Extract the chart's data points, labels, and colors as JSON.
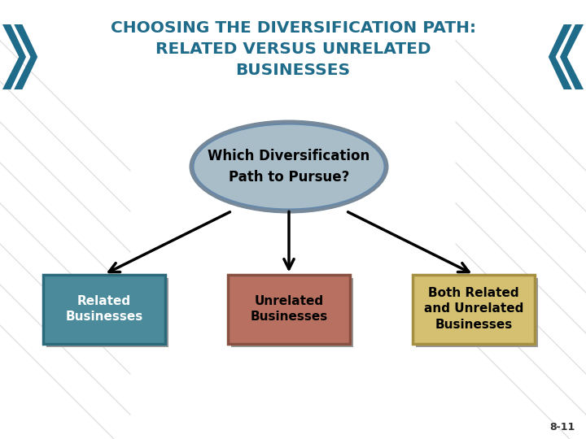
{
  "title_line1": "CHOOSING THE DIVERSIFICATION PATH:",
  "title_line2": "RELATED VERSUS UNRELATED",
  "title_line3": "BUSINESSES",
  "title_color": "#1F6B8A",
  "bg_color": "#FFFFFF",
  "ellipse_text_line1": "Which Diversification",
  "ellipse_text_line2": "Path to Pursue?",
  "ellipse_fill": "#A8BDC8",
  "ellipse_edge": "#7A9AAA",
  "box1_text": "Related\nBusinesses",
  "box1_fill": "#4A8A9A",
  "box1_edge": "#2A6A7A",
  "box1_text_color": "#FFFFFF",
  "box2_text": "Unrelated\nBusinesses",
  "box2_fill": "#B87060",
  "box2_edge": "#885040",
  "box2_text_color": "#000000",
  "box3_text": "Both Related\nand Unrelated\nBusinesses",
  "box3_fill": "#D4C070",
  "box3_edge": "#A49040",
  "box3_text_color": "#000000",
  "arrow_color": "#000000",
  "chevron_color": "#1F6B8A",
  "footnote": "8-11"
}
